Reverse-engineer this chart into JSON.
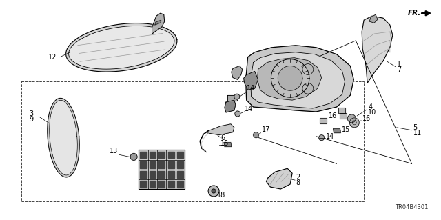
{
  "background_color": "#ffffff",
  "diagram_code": "TR04B4301",
  "fig_w": 6.4,
  "fig_h": 3.19,
  "dpi": 100,
  "black": "#000000",
  "gray_light": "#e8e8e8",
  "gray_mid": "#cccccc",
  "gray_dark": "#888888",
  "line_color": "#111111",
  "label_fontsize": 7.0,
  "code_fontsize": 6.5
}
